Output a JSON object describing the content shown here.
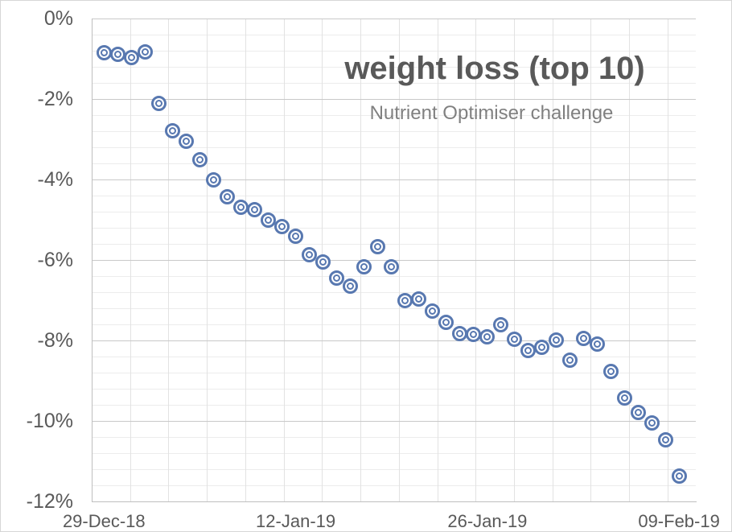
{
  "chart": {
    "title": "weight loss (top 10)",
    "subtitle": "Nutrient Optimiser challenge"
  },
  "chart_data": {
    "type": "scatter",
    "title": "weight loss (top 10)",
    "subtitle": "Nutrient Optimiser challenge",
    "xlabel": "",
    "ylabel": "",
    "legend": "none",
    "grid": "major+minor",
    "marker_style": "double-circle-outline",
    "marker_color": "#5878b0",
    "text_color": "#595959",
    "subtitle_color": "#808080",
    "x_tick_labels": [
      "29-Dec-18",
      "12-Jan-19",
      "26-Jan-19",
      "09-Feb-19"
    ],
    "y_tick_labels": [
      "0%",
      "-2%",
      "-4%",
      "-6%",
      "-8%",
      "-10%",
      "-12%"
    ],
    "ylim": [
      -12,
      0
    ],
    "y_major_unit": 2,
    "y_minor_unit": 0.4,
    "x_major_unit_days": 14,
    "series": [
      {
        "name": "weight loss (top 10)",
        "x": [
          "29-Dec-18",
          "30-Dec-18",
          "31-Dec-18",
          "01-Jan-19",
          "02-Jan-19",
          "03-Jan-19",
          "04-Jan-19",
          "05-Jan-19",
          "06-Jan-19",
          "07-Jan-19",
          "08-Jan-19",
          "09-Jan-19",
          "10-Jan-19",
          "11-Jan-19",
          "12-Jan-19",
          "13-Jan-19",
          "14-Jan-19",
          "15-Jan-19",
          "16-Jan-19",
          "17-Jan-19",
          "18-Jan-19",
          "19-Jan-19",
          "20-Jan-19",
          "21-Jan-19",
          "22-Jan-19",
          "23-Jan-19",
          "24-Jan-19",
          "25-Jan-19",
          "26-Jan-19",
          "27-Jan-19",
          "28-Jan-19",
          "29-Jan-19",
          "30-Jan-19",
          "31-Jan-19",
          "01-Feb-19",
          "02-Feb-19",
          "03-Feb-19",
          "04-Feb-19",
          "05-Feb-19",
          "06-Feb-19",
          "07-Feb-19",
          "08-Feb-19",
          "09-Feb-19"
        ],
        "y_percent": [
          -0.85,
          -0.88,
          -0.97,
          -0.83,
          -2.1,
          -2.78,
          -3.04,
          -3.51,
          -4.0,
          -4.43,
          -4.69,
          -4.75,
          -5.0,
          -5.17,
          -5.41,
          -5.86,
          -6.05,
          -6.44,
          -6.64,
          -6.16,
          -5.66,
          -6.17,
          -7.01,
          -6.97,
          -7.27,
          -7.55,
          -7.83,
          -7.85,
          -7.9,
          -7.61,
          -7.96,
          -8.24,
          -8.16,
          -7.99,
          -8.49,
          -7.95,
          -8.09,
          -8.76,
          -9.43,
          -9.79,
          -10.05,
          -10.47,
          -11.36
        ]
      }
    ]
  }
}
